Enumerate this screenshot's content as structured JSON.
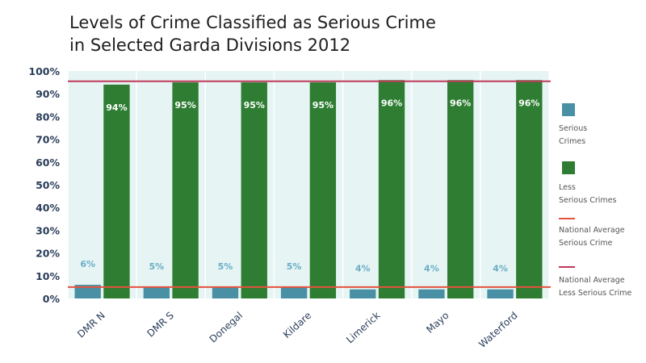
{
  "title": {
    "line1": "Levels of Crime Classified as Serious Crime",
    "line2": "in Selected Garda Divisions 2012"
  },
  "chart_data": {
    "type": "bar",
    "categories": [
      "DMR N",
      "DMR S",
      "Donegal",
      "Kildare",
      "Limerick",
      "Mayo",
      "Waterford"
    ],
    "series": [
      {
        "name": "Serious Crimes",
        "values": [
          6,
          5,
          5,
          5,
          4,
          4,
          4
        ],
        "labels": [
          "6%",
          "5%",
          "5%",
          "5%",
          "4%",
          "4%",
          "4%"
        ],
        "color": "#4a90a4"
      },
      {
        "name": "Less Serious Crimes",
        "values": [
          94,
          95,
          95,
          95,
          96,
          96,
          96
        ],
        "labels": [
          "94%",
          "95%",
          "95%",
          "95%",
          "96%",
          "96%",
          "96%"
        ],
        "color": "#2e7d32"
      }
    ],
    "reference_lines": [
      {
        "name": "National Average Serious Crime",
        "value": 5,
        "color": "#e5533d"
      },
      {
        "name": "National Average Less Serious Crime",
        "value": 95.5,
        "color": "#c0395a"
      }
    ],
    "y_ticks": [
      {
        "value": 0,
        "label": "0%"
      },
      {
        "value": 10,
        "label": "10%"
      },
      {
        "value": 20,
        "label": "20%"
      },
      {
        "value": 30,
        "label": "30%"
      },
      {
        "value": 40,
        "label": "40%"
      },
      {
        "value": 50,
        "label": "50%"
      },
      {
        "value": 60,
        "label": "60%"
      },
      {
        "value": 70,
        "label": "70%"
      },
      {
        "value": 80,
        "label": "80%"
      },
      {
        "value": 90,
        "label": "90%"
      },
      {
        "value": 100,
        "label": "100%"
      }
    ],
    "ylim": [
      0,
      100
    ],
    "plot_background": "#e6f4f4",
    "grid": "vertical",
    "legend_position": "right"
  },
  "legend": {
    "serious_l1": "Serious",
    "serious_l2": "Crimes",
    "less_l1": "Less",
    "less_l2": "Serious Crimes",
    "avg_serious_l1": "National Average",
    "avg_serious_l2": "Serious Crime",
    "avg_less_l1": "National Average",
    "avg_less_l2": "Less Serious Crime"
  }
}
